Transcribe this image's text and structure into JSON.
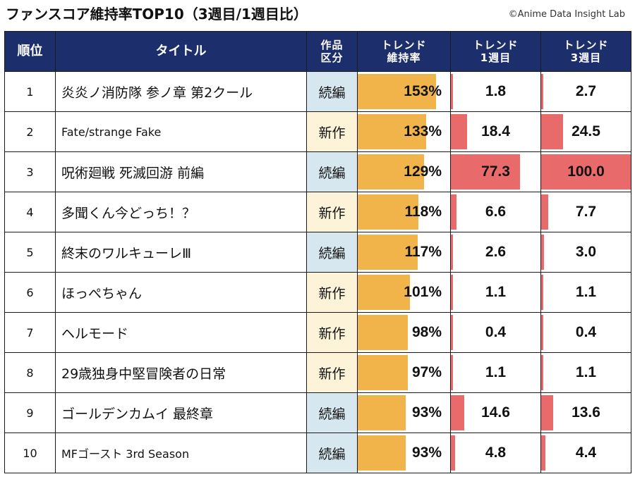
{
  "title": "ファンスコア維持率TOP10（3週目/1週目比）",
  "credit": "©Anime Data Insight Lab",
  "chart_data": {
    "type": "table",
    "columns": {
      "rank": "順位",
      "title": "タイトル",
      "category_l1": "作品",
      "category_l2": "区分",
      "retention_l1": "トレンド",
      "retention_l2": "維持率",
      "week1_l1": "トレンド",
      "week1_l2": "1週目",
      "week3_l1": "トレンド",
      "week3_l2": "3週目"
    },
    "rows": [
      {
        "rank": "1",
        "title": "炎炎ノ消防隊 参ノ章 第2クール",
        "size": "l",
        "category": "続編",
        "cat": "cont",
        "retention": 153,
        "retention_label": "153%",
        "week1": 1.8,
        "week1_label": "1.8",
        "week3": 2.7,
        "week3_label": "2.7"
      },
      {
        "rank": "2",
        "title": "Fate/strange Fake",
        "size": "s",
        "category": "新作",
        "cat": "new",
        "retention": 133,
        "retention_label": "133%",
        "week1": 18.4,
        "week1_label": "18.4",
        "week3": 24.5,
        "week3_label": "24.5"
      },
      {
        "rank": "3",
        "title": "呪術廻戦 死滅回游 前編",
        "size": "l",
        "category": "続編",
        "cat": "cont",
        "retention": 129,
        "retention_label": "129%",
        "week1": 77.3,
        "week1_label": "77.3",
        "week3": 100.0,
        "week3_label": "100.0"
      },
      {
        "rank": "4",
        "title": "多聞くん今どっち！？",
        "size": "l",
        "category": "新作",
        "cat": "new",
        "retention": 118,
        "retention_label": "118%",
        "week1": 6.6,
        "week1_label": "6.6",
        "week3": 7.7,
        "week3_label": "7.7"
      },
      {
        "rank": "5",
        "title": "終末のワルキューレⅢ",
        "size": "l",
        "category": "続編",
        "cat": "cont",
        "retention": 117,
        "retention_label": "117%",
        "week1": 2.6,
        "week1_label": "2.6",
        "week3": 3.0,
        "week3_label": "3.0"
      },
      {
        "rank": "6",
        "title": "ほっぺちゃん",
        "size": "l",
        "category": "新作",
        "cat": "new",
        "retention": 101,
        "retention_label": "101%",
        "week1": 1.1,
        "week1_label": "1.1",
        "week3": 1.1,
        "week3_label": "1.1"
      },
      {
        "rank": "7",
        "title": "ヘルモード",
        "size": "l",
        "category": "新作",
        "cat": "new",
        "retention": 98,
        "retention_label": "98%",
        "week1": 0.4,
        "week1_label": "0.4",
        "week3": 0.4,
        "week3_label": "0.4"
      },
      {
        "rank": "8",
        "title": "29歳独身中堅冒険者の日常",
        "size": "l",
        "category": "新作",
        "cat": "new",
        "retention": 97,
        "retention_label": "97%",
        "week1": 1.1,
        "week1_label": "1.1",
        "week3": 1.1,
        "week3_label": "1.1"
      },
      {
        "rank": "9",
        "title": "ゴールデンカムイ 最終章",
        "size": "l",
        "category": "続編",
        "cat": "cont",
        "retention": 93,
        "retention_label": "93%",
        "week1": 14.6,
        "week1_label": "14.6",
        "week3": 13.6,
        "week3_label": "13.6"
      },
      {
        "rank": "10",
        "title": "MFゴースト 3rd Season",
        "size": "s",
        "category": "続編",
        "cat": "cont",
        "retention": 93,
        "retention_label": "93%",
        "week1": 4.8,
        "week1_label": "4.8",
        "week3": 4.4,
        "week3_label": "4.4"
      }
    ],
    "retention_scale_max": 180,
    "trend_scale_max": 100
  },
  "colors": {
    "header_bg": "#1c2e6b",
    "retention_bar": "#f0b44a",
    "trend_bar": "#e86a6a",
    "sequel_bg": "#d6e7f0",
    "new_bg": "#fdf3d8"
  }
}
